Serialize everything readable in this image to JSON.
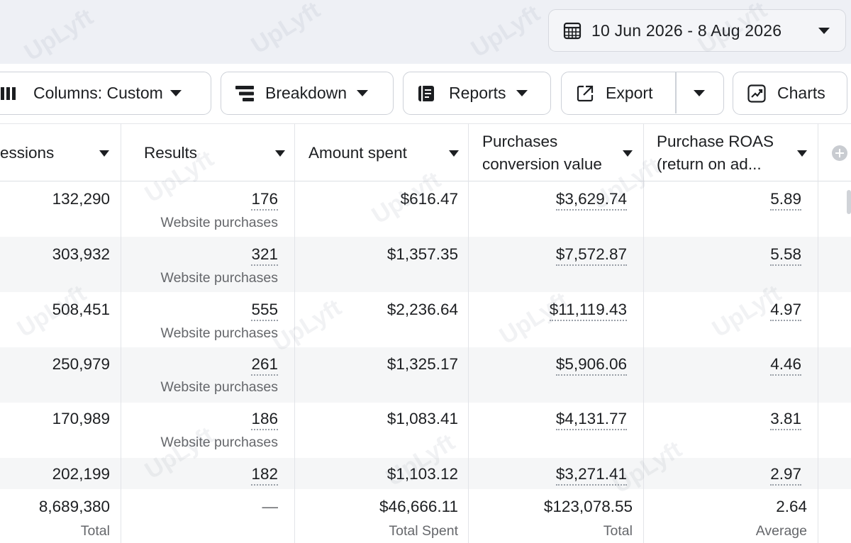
{
  "date_range": {
    "label": "10 Jun 2026 - 8 Aug 2026",
    "icon": "calendar-icon"
  },
  "toolbar": {
    "columns": {
      "label": "Columns: Custom",
      "icon": "columns-icon"
    },
    "breakdown": {
      "label": "Breakdown",
      "icon": "breakdown-icon"
    },
    "reports": {
      "label": "Reports",
      "icon": "reports-icon"
    },
    "export": {
      "label": "Export",
      "icon": "export-icon"
    },
    "charts": {
      "label": "Charts",
      "icon": "charts-icon"
    }
  },
  "table": {
    "headers": {
      "impressions": "essions",
      "results": "Results",
      "amount_spent": "Amount spent",
      "conv_value_1": "Purchases",
      "conv_value_2": "conversion value",
      "roas_1": "Purchase ROAS",
      "roas_2": "(return on ad..."
    },
    "rows": [
      {
        "impressions": "132,290",
        "results": "176",
        "results_sub": "Website purchases",
        "amount_spent": "$616.47",
        "conv_value": "$3,629.74",
        "roas": "5.89"
      },
      {
        "impressions": "303,932",
        "results": "321",
        "results_sub": "Website purchases",
        "amount_spent": "$1,357.35",
        "conv_value": "$7,572.87",
        "roas": "5.58"
      },
      {
        "impressions": "508,451",
        "results": "555",
        "results_sub": "Website purchases",
        "amount_spent": "$2,236.64",
        "conv_value": "$11,119.43",
        "roas": "4.97"
      },
      {
        "impressions": "250,979",
        "results": "261",
        "results_sub": "Website purchases",
        "amount_spent": "$1,325.17",
        "conv_value": "$5,906.06",
        "roas": "4.46"
      },
      {
        "impressions": "170,989",
        "results": "186",
        "results_sub": "Website purchases",
        "amount_spent": "$1,083.41",
        "conv_value": "$4,131.77",
        "roas": "3.81"
      },
      {
        "impressions": "202,199",
        "results": "182",
        "amount_spent": "$1,103.12",
        "conv_value": "$3,271.41",
        "roas": "2.97"
      }
    ],
    "totals": {
      "impressions": "8,689,380",
      "impressions_sub": "Total",
      "results": "—",
      "amount_spent": "$46,666.11",
      "amount_spent_sub": "Total Spent",
      "conv_value": "$123,078.55",
      "conv_value_sub": "Total",
      "roas": "2.64",
      "roas_sub": "Average"
    }
  },
  "watermark": "UpLyft"
}
